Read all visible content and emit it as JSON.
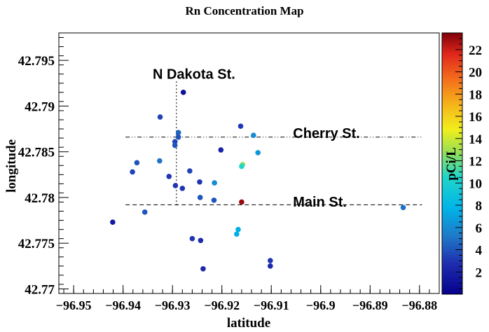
{
  "chart_data": {
    "type": "scatter",
    "title": "Rn Concentration Map",
    "xlabel": "latitude",
    "ylabel": "longitude",
    "xlim": [
      -96.953,
      -96.876
    ],
    "ylim": [
      42.7695,
      42.798
    ],
    "xticks": [
      -96.95,
      -96.94,
      -96.93,
      -96.92,
      -96.91,
      -96.9,
      -96.89,
      -96.88
    ],
    "xtick_labels": [
      "−96.95",
      "−96.94",
      "−96.93",
      "−96.92",
      "−96.91",
      "−96.9",
      "−96.89",
      "−96.88"
    ],
    "yticks": [
      42.77,
      42.775,
      42.78,
      42.785,
      42.79,
      42.795
    ],
    "ytick_labels": [
      "42.77",
      "42.775",
      "42.78",
      "42.785",
      "42.79",
      "42.795"
    ],
    "grid": false,
    "colorbar": {
      "label": "pCi/L",
      "range": [
        0,
        23.5
      ],
      "ticks": [
        2,
        4,
        6,
        8,
        10,
        12,
        14,
        16,
        18,
        20,
        22
      ],
      "tick_labels": [
        "2",
        "4",
        "6",
        "8",
        "10",
        "12",
        "14",
        "16",
        "18",
        "20",
        "22"
      ]
    },
    "points": [
      {
        "x": -96.9278,
        "y": 42.7915,
        "v": 1.0
      },
      {
        "x": -96.9325,
        "y": 42.7888,
        "v": 3.5
      },
      {
        "x": -96.9162,
        "y": 42.7878,
        "v": 3.0
      },
      {
        "x": -96.9288,
        "y": 42.7871,
        "v": 4.5
      },
      {
        "x": -96.9288,
        "y": 42.7866,
        "v": 4.0
      },
      {
        "x": -96.9136,
        "y": 42.7868,
        "v": 6.0
      },
      {
        "x": -96.9295,
        "y": 42.7861,
        "v": 3.5
      },
      {
        "x": -96.9295,
        "y": 42.7857,
        "v": 4.0
      },
      {
        "x": -96.9202,
        "y": 42.7852,
        "v": 2.0
      },
      {
        "x": -96.9127,
        "y": 42.7849,
        "v": 6.5
      },
      {
        "x": -96.9326,
        "y": 42.784,
        "v": 5.0
      },
      {
        "x": -96.9372,
        "y": 42.7838,
        "v": 4.0
      },
      {
        "x": -96.9158,
        "y": 42.7836,
        "v": 12.5
      },
      {
        "x": -96.916,
        "y": 42.7834,
        "v": 10.5
      },
      {
        "x": -96.9381,
        "y": 42.7828,
        "v": 3.5
      },
      {
        "x": -96.9265,
        "y": 42.7829,
        "v": 3.5
      },
      {
        "x": -96.9307,
        "y": 42.7823,
        "v": 3.0
      },
      {
        "x": -96.9245,
        "y": 42.7817,
        "v": 3.0
      },
      {
        "x": -96.9215,
        "y": 42.7816,
        "v": 6.0
      },
      {
        "x": -96.9294,
        "y": 42.7813,
        "v": 3.0
      },
      {
        "x": -96.928,
        "y": 42.781,
        "v": 3.0
      },
      {
        "x": -96.9244,
        "y": 42.78,
        "v": 4.0
      },
      {
        "x": -96.9216,
        "y": 42.7797,
        "v": 4.0
      },
      {
        "x": -96.916,
        "y": 42.7795,
        "v": 23.0
      },
      {
        "x": -96.9356,
        "y": 42.7784,
        "v": 4.0
      },
      {
        "x": -96.8833,
        "y": 42.7789,
        "v": 5.0
      },
      {
        "x": -96.9421,
        "y": 42.7773,
        "v": 1.5
      },
      {
        "x": -96.9167,
        "y": 42.7765,
        "v": 7.5
      },
      {
        "x": -96.917,
        "y": 42.776,
        "v": 7.5
      },
      {
        "x": -96.926,
        "y": 42.7755,
        "v": 3.0
      },
      {
        "x": -96.9243,
        "y": 42.7753,
        "v": 2.5
      },
      {
        "x": -96.9102,
        "y": 42.7731,
        "v": 3.0
      },
      {
        "x": -96.9102,
        "y": 42.7725,
        "v": 2.5
      },
      {
        "x": -96.9238,
        "y": 42.7722,
        "v": 2.5
      }
    ],
    "lines": [
      {
        "name": "Cherry St.",
        "orientation": "horizontal",
        "at": 42.7866,
        "from": -96.9395,
        "to": -96.8795,
        "style": "dash-dot-dot"
      },
      {
        "name": "Main St.",
        "orientation": "horizontal",
        "at": 42.7792,
        "from": -96.9395,
        "to": -96.8795,
        "style": "dashed"
      },
      {
        "name": "N Dakota St.",
        "orientation": "vertical",
        "at": -96.9292,
        "from": 42.7791,
        "to": 42.7927,
        "style": "dotted"
      }
    ],
    "annotations": [
      {
        "text": "N Dakota St.",
        "x": -96.934,
        "y": 42.793
      },
      {
        "text": "Cherry St.",
        "x": -96.9056,
        "y": 42.7865
      },
      {
        "text": "Main St.",
        "x": -96.9056,
        "y": 42.779
      }
    ]
  }
}
